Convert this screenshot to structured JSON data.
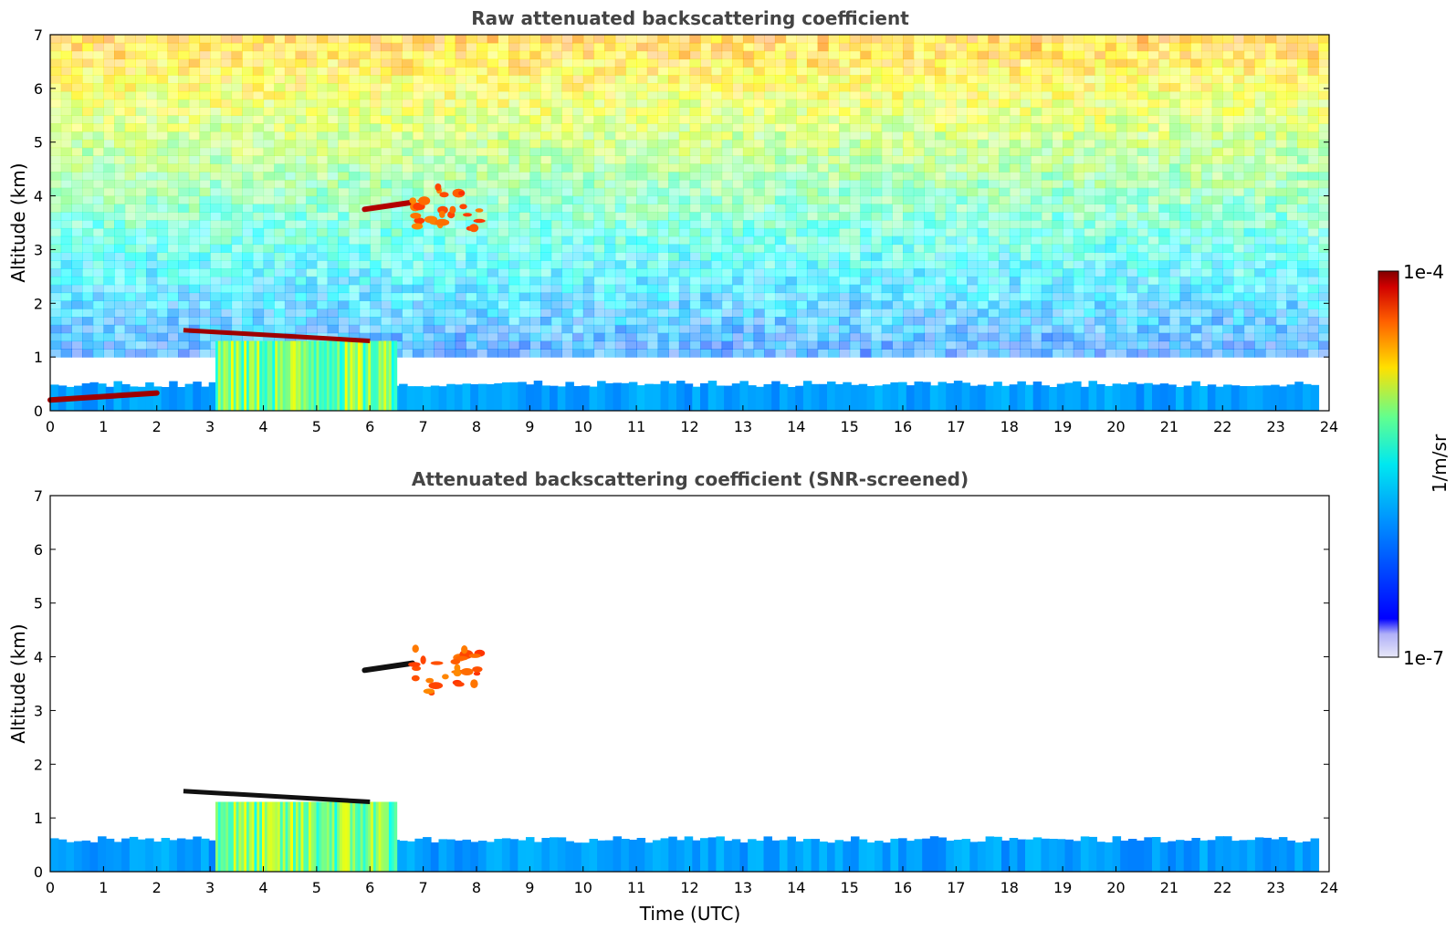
{
  "chart_data": [
    {
      "type": "heatmap",
      "title": "Raw attenuated backscattering coefficient",
      "xlabel": "",
      "ylabel": "Altitude (km)",
      "xlim": [
        0,
        24
      ],
      "ylim": [
        0,
        7
      ],
      "x_ticks": [
        "0",
        "1",
        "2",
        "3",
        "4",
        "5",
        "6",
        "7",
        "8",
        "9",
        "10",
        "11",
        "12",
        "13",
        "14",
        "15",
        "16",
        "17",
        "18",
        "19",
        "20",
        "21",
        "22",
        "23",
        "24"
      ],
      "y_ticks": [
        "0",
        "1",
        "2",
        "3",
        "4",
        "5",
        "6",
        "7"
      ],
      "features": [
        {
          "kind": "boundary_layer",
          "x": [
            0,
            23.8
          ],
          "y_top": 0.5,
          "level": 0.28
        },
        {
          "kind": "aerosol_layer",
          "x": [
            3.1,
            6.5
          ],
          "y": [
            0,
            1.3
          ],
          "level": 0.5
        },
        {
          "kind": "cloud_top_line",
          "x": [
            2.5,
            6.0
          ],
          "y": [
            1.5,
            1.3
          ],
          "level": 0.97
        },
        {
          "kind": "cloud_layer",
          "x": [
            0,
            2.0
          ],
          "y": 0.25,
          "level": 0.97
        },
        {
          "kind": "cloud_layer",
          "x": [
            5.9,
            6.8
          ],
          "y": 3.8,
          "level": 0.95
        },
        {
          "kind": "cloud_patch",
          "x": [
            6.8,
            8.2
          ],
          "y": [
            3.3,
            4.2
          ],
          "level": 0.78
        },
        {
          "kind": "noise_gradient",
          "x": [
            0,
            24
          ],
          "y": [
            1,
            7
          ],
          "level": [
            0.25,
            0.7
          ]
        }
      ]
    },
    {
      "type": "heatmap",
      "title": "Attenuated backscattering coefficient (SNR-screened)",
      "xlabel": "Time (UTC)",
      "ylabel": "Altitude (km)",
      "xlim": [
        0,
        24
      ],
      "ylim": [
        0,
        7
      ],
      "x_ticks": [
        "0",
        "1",
        "2",
        "3",
        "4",
        "5",
        "6",
        "7",
        "8",
        "9",
        "10",
        "11",
        "12",
        "13",
        "14",
        "15",
        "16",
        "17",
        "18",
        "19",
        "20",
        "21",
        "22",
        "23",
        "24"
      ],
      "y_ticks": [
        "0",
        "1",
        "2",
        "3",
        "4",
        "5",
        "6",
        "7"
      ],
      "features": [
        {
          "kind": "boundary_layer",
          "x": [
            0,
            23.8
          ],
          "y_top": 0.6,
          "level": 0.28
        },
        {
          "kind": "aerosol_layer",
          "x": [
            3.1,
            6.5
          ],
          "y": [
            0,
            1.3
          ],
          "level": 0.5
        },
        {
          "kind": "cloud_top_line",
          "x": [
            2.5,
            6.0
          ],
          "y": [
            1.5,
            1.3
          ],
          "level": 1.0
        },
        {
          "kind": "cloud_layer",
          "x": [
            5.9,
            6.8
          ],
          "y": 3.8,
          "level": 1.0
        },
        {
          "kind": "cloud_patch",
          "x": [
            6.8,
            8.2
          ],
          "y": [
            3.3,
            4.2
          ],
          "level": 0.78
        }
      ]
    }
  ],
  "colorbar": {
    "label": "1/m/sr",
    "max_label": "1e-4",
    "min_label": "1e-7",
    "colormap": "jet",
    "range": [
      1e-07,
      0.0001
    ],
    "colors": [
      "#e8e8f8",
      "#c8c8f8",
      "#0000ff",
      "#0080ff",
      "#00e0ff",
      "#40ffb0",
      "#c0ff40",
      "#ffe000",
      "#ff8000",
      "#ff2000",
      "#800000"
    ]
  }
}
